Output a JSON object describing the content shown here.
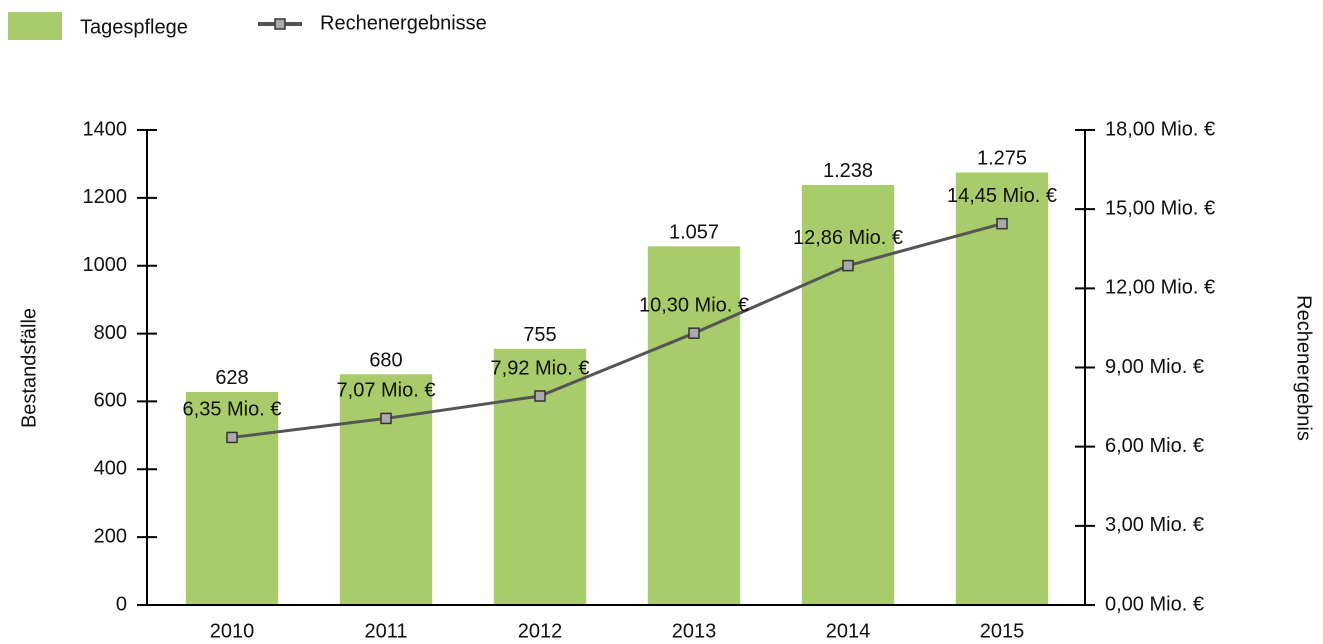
{
  "chart_data": {
    "type": "bar-line",
    "categories": [
      "2010",
      "2011",
      "2012",
      "2013",
      "2014",
      "2015"
    ],
    "series": [
      {
        "name": "Tagespflege",
        "type": "bar",
        "color": "#a8cb6b",
        "values": [
          628,
          680,
          755,
          1057,
          1238,
          1275
        ],
        "value_labels": [
          "628",
          "680",
          "755",
          "1.057",
          "1.238",
          "1.275"
        ]
      },
      {
        "name": "Rechenergebnisse",
        "type": "line",
        "axis": "y2",
        "color": "#555555",
        "values": [
          6.35,
          7.07,
          7.92,
          10.3,
          12.86,
          14.45
        ],
        "value_labels": [
          "6,35 Mio. €",
          "7,07 Mio. €",
          "7,92 Mio. €",
          "10,30 Mio. €",
          "12,86 Mio. €",
          "14,45 Mio. €"
        ]
      }
    ],
    "y_label": "Bestandsfälle",
    "y2_label": "Rechenergebnis",
    "ylim": [
      0,
      1400
    ],
    "yticks": [
      0,
      200,
      400,
      600,
      800,
      1000,
      1200,
      1400
    ],
    "y2lim": [
      0,
      18
    ],
    "y2ticks": [
      {
        "value": 0,
        "label": "0,00 Mio. €"
      },
      {
        "value": 3,
        "label": "3,00 Mio. €"
      },
      {
        "value": 6,
        "label": "6,00 Mio. €"
      },
      {
        "value": 9,
        "label": "9,00 Mio. €"
      },
      {
        "value": 12,
        "label": "12,00 Mio. €"
      },
      {
        "value": 15,
        "label": "15,00 Mio. €"
      },
      {
        "value": 18,
        "label": "18,00 Mio. €"
      }
    ],
    "legend": "top-left"
  }
}
